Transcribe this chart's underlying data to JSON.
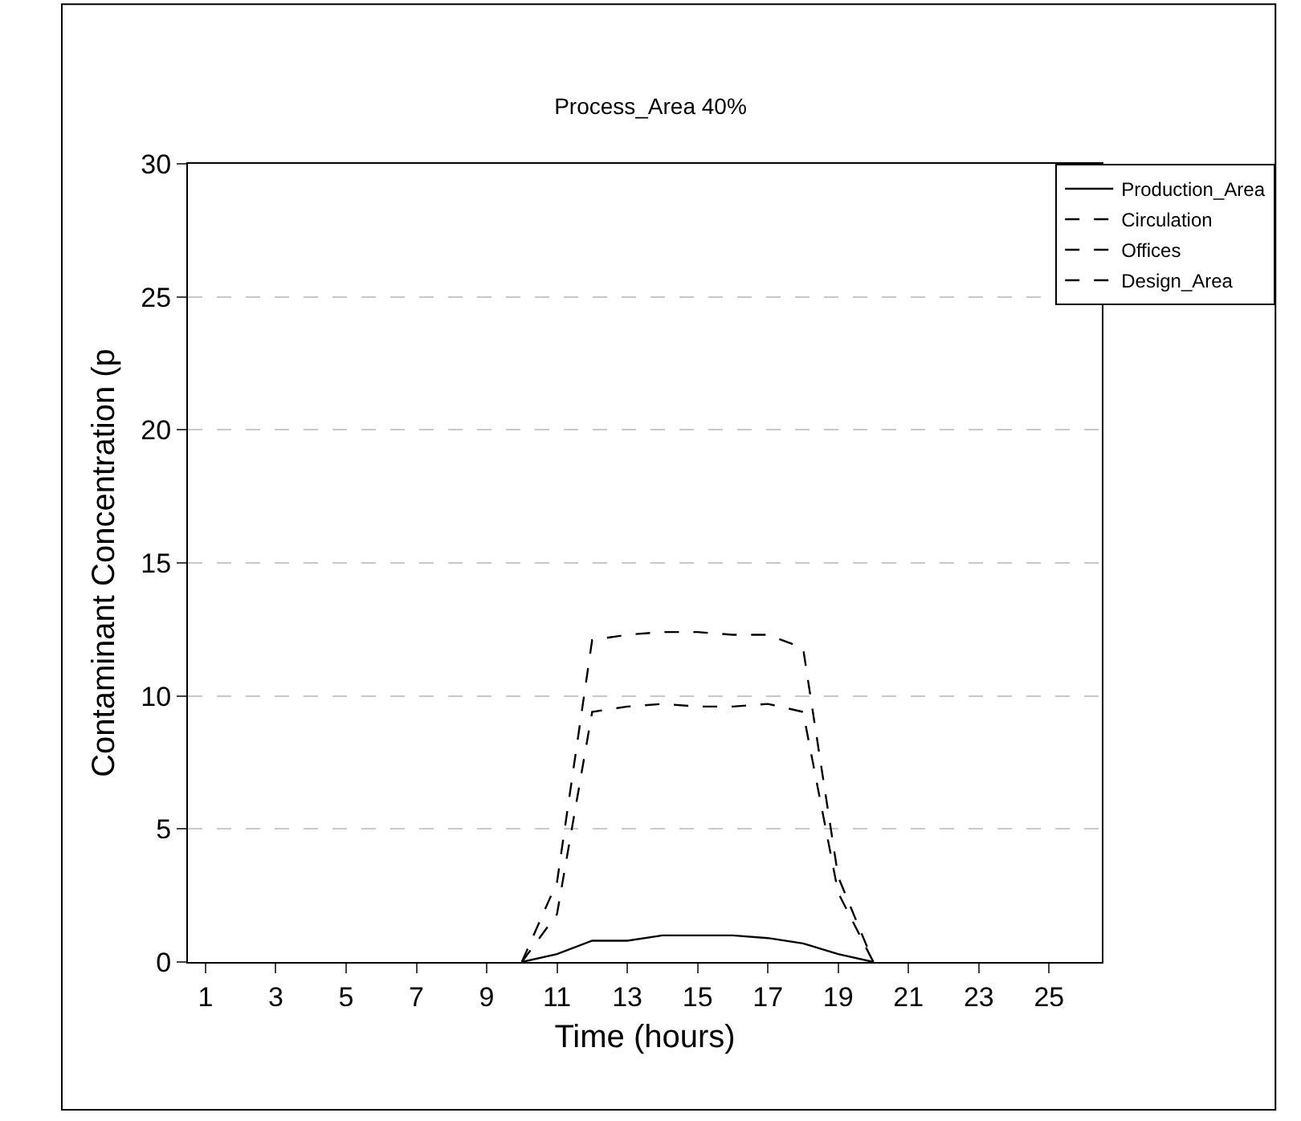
{
  "chart_data": {
    "type": "line",
    "title": "Process_Area 40%",
    "xlabel": "Time (hours)",
    "ylabel": "Contaminant Concentration (p",
    "x": [
      10,
      11,
      12,
      13,
      14,
      15,
      16,
      17,
      18,
      19,
      20
    ],
    "series": [
      {
        "name": "Production_Area",
        "color": "#000000",
        "line_style": "solid",
        "values": [
          0,
          0.3,
          0.8,
          0.8,
          1.0,
          1.0,
          1.0,
          0.9,
          0.7,
          0.3,
          0
        ]
      },
      {
        "name": "Circulation",
        "color": "#000000",
        "line_style": "dashed",
        "values": [
          null,
          null,
          null,
          null,
          null,
          null,
          null,
          null,
          null,
          null,
          null
        ]
      },
      {
        "name": "Offices",
        "color": "#000000",
        "line_style": "dashed",
        "values": [
          0,
          3.0,
          12.1,
          12.3,
          12.4,
          12.4,
          12.3,
          12.3,
          11.8,
          3.2,
          0
        ]
      },
      {
        "name": "Design_Area",
        "color": "#000000",
        "line_style": "dashed",
        "values": [
          0,
          1.8,
          9.4,
          9.6,
          9.7,
          9.6,
          9.6,
          9.7,
          9.4,
          2.6,
          0
        ]
      }
    ],
    "xlim": [
      0.5,
      26.5
    ],
    "xticks": [
      1,
      3,
      5,
      7,
      9,
      11,
      13,
      15,
      17,
      19,
      21,
      23,
      25
    ],
    "ylim": [
      0,
      30
    ],
    "yticks": [
      0,
      5,
      10,
      15,
      20,
      25,
      30
    ],
    "grid": "y",
    "legend": "top right",
    "marker": "none"
  }
}
